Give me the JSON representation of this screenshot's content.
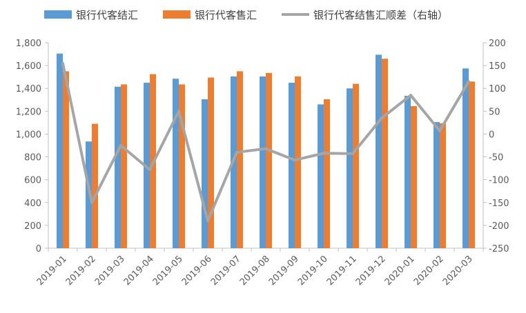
{
  "chart_data": {
    "type": "bar",
    "categories": [
      "2019-01",
      "2019-02",
      "2019-03",
      "2019-04",
      "2019-05",
      "2019-06",
      "2019-07",
      "2019-08",
      "2019-09",
      "2019-10",
      "2019-11",
      "2019-12",
      "2020-01",
      "2020-02",
      "2020-03"
    ],
    "series": [
      {
        "name": "银行代客结汇",
        "type": "bar",
        "axis": "left",
        "color": "#5B9BD5",
        "values": [
          1705,
          935,
          1415,
          1450,
          1485,
          1305,
          1505,
          1505,
          1450,
          1260,
          1400,
          1695,
          1335,
          1105,
          1575
        ]
      },
      {
        "name": "银行代客售汇",
        "type": "bar",
        "axis": "left",
        "color": "#ED7D31",
        "values": [
          1550,
          1090,
          1435,
          1525,
          1435,
          1495,
          1550,
          1535,
          1505,
          1305,
          1440,
          1660,
          1245,
          1095,
          1460
        ]
      },
      {
        "name": "银行代客结售汇顺差（右轴）",
        "type": "line",
        "axis": "right",
        "color": "#A5A5A5",
        "values": [
          155,
          -150,
          -25,
          -78,
          50,
          -190,
          -40,
          -32,
          -57,
          -42,
          -43,
          35,
          85,
          7,
          115
        ]
      }
    ],
    "y_left": {
      "min": 0,
      "max": 1800,
      "step": 200,
      "tick_labels": [
        "0",
        "200",
        "400",
        "600",
        "800",
        "1,000",
        "1,200",
        "1,400",
        "1,600",
        "1,800"
      ]
    },
    "y_right": {
      "min": -250,
      "max": 200,
      "step": 50,
      "tick_labels": [
        "-250",
        "-200",
        "-150",
        "-100",
        "-50",
        "0",
        "50",
        "100",
        "150",
        "200"
      ]
    },
    "legend_position": "top",
    "grid": false
  }
}
